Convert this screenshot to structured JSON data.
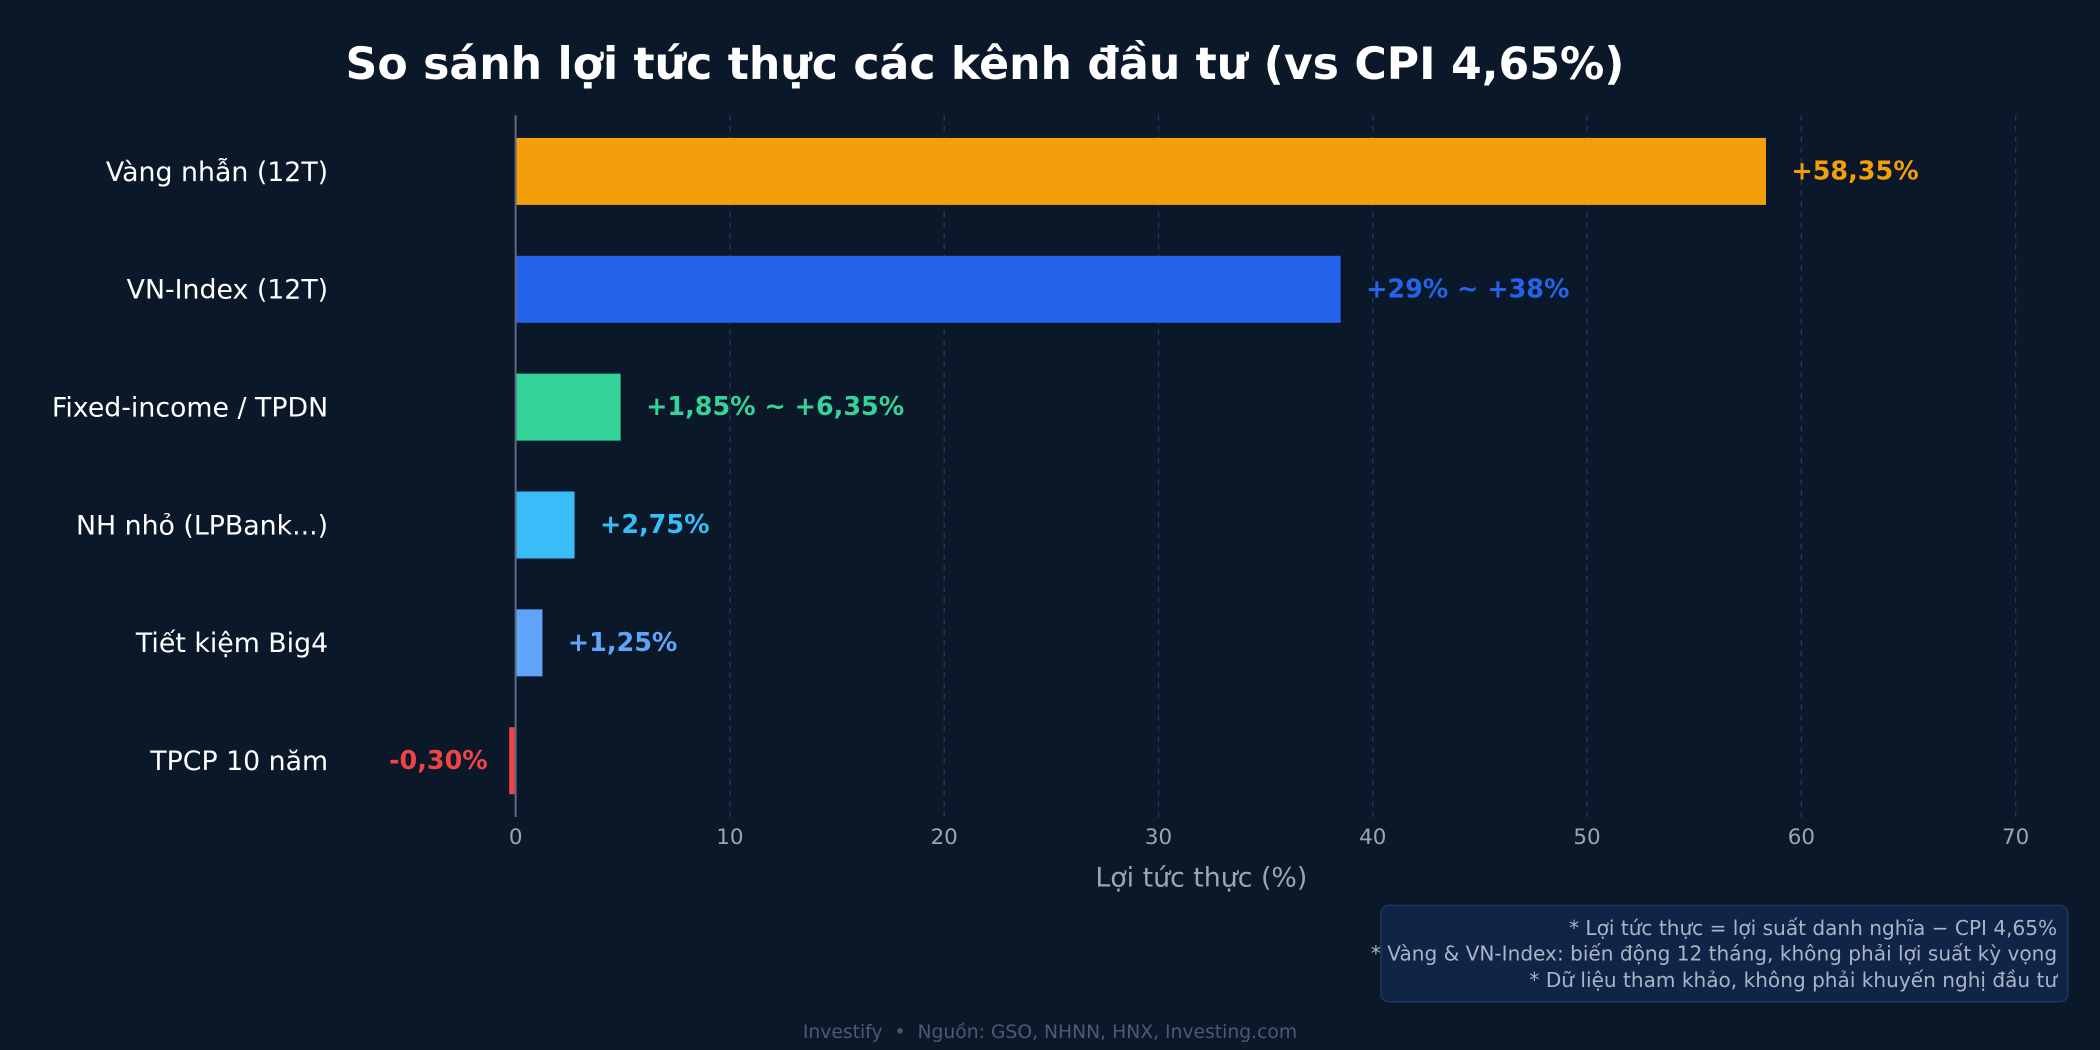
{
  "chart_data": {
    "type": "bar",
    "orientation": "horizontal",
    "title": "So sánh lợi tức thực các kênh đầu tư (vs CPI 4,65%)",
    "xlabel": "Lợi tức thực (%)",
    "ylabel": "",
    "xlim": [
      -1,
      73
    ],
    "xticks": [
      "0",
      "10",
      "20",
      "30",
      "40",
      "50",
      "60",
      "70"
    ],
    "grid": "vertical dashed",
    "categories": [
      "Vàng nhẫn (12T)",
      "VN-Index (12T)",
      "Fixed-income / TPDN",
      "NH nhỏ (LPBank...)",
      "Tiết kiệm Big4",
      "TPCP 10 năm"
    ],
    "values": [
      58.35,
      38.5,
      4.9,
      2.75,
      1.25,
      -0.3
    ],
    "data_labels": [
      "+58,35%",
      "+29% ~ +38%",
      "+1,85% ~ +6,35%",
      "+2,75%",
      "+1,25%",
      "-0,30%"
    ],
    "colors": [
      "#f59e0b",
      "#2563eb",
      "#34d399",
      "#38bdf8",
      "#60a5fa",
      "#ef4444"
    ],
    "notes": [
      "* Lợi tức thực = lợi suất danh nghĩa − CPI 4,65%",
      "* Vàng & VN-Index: biến động 12 tháng, không phải lợi suất kỳ vọng",
      "* Dữ liệu tham khảo, không phải khuyến nghị đầu tư"
    ],
    "footer": "Investify  •  Nguồn: GSO, NHNN, HNX, Investing.com"
  }
}
